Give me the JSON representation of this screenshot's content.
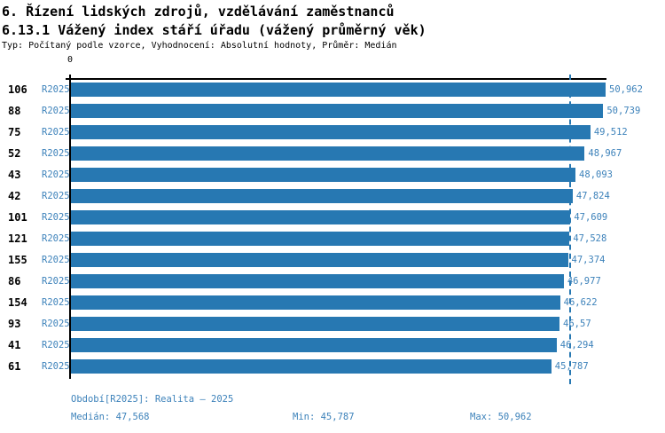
{
  "header": {
    "title": "6. Řízení lidských zdrojů, vzdělávání zaměstnanců",
    "subtitle": "6.13.1 Vážený index stáří úřadu (vážený průměrný věk)",
    "meta": "Typ: Počítaný podle vzorce, Vyhodnocení: Absolutní hodnoty, Průměr: Medián"
  },
  "chart_data": {
    "type": "bar",
    "orientation": "horizontal",
    "title": "6.13.1 Vážený index stáří úřadu (vážený průměrný věk)",
    "xlabel": "",
    "ylabel": "",
    "axis": {
      "origin_tick_label": "0",
      "xmin": 0,
      "xmax": 50.962,
      "grid": false
    },
    "rows": [
      {
        "id": "106",
        "period": "R2025",
        "value": 50.962,
        "value_label": "50,962"
      },
      {
        "id": "88",
        "period": "R2025",
        "value": 50.739,
        "value_label": "50,739"
      },
      {
        "id": "75",
        "period": "R2025",
        "value": 49.512,
        "value_label": "49,512"
      },
      {
        "id": "52",
        "period": "R2025",
        "value": 48.967,
        "value_label": "48,967"
      },
      {
        "id": "43",
        "period": "R2025",
        "value": 48.093,
        "value_label": "48,093"
      },
      {
        "id": "42",
        "period": "R2025",
        "value": 47.824,
        "value_label": "47,824"
      },
      {
        "id": "101",
        "period": "R2025",
        "value": 47.609,
        "value_label": "47,609"
      },
      {
        "id": "121",
        "period": "R2025",
        "value": 47.528,
        "value_label": "47,528"
      },
      {
        "id": "155",
        "period": "R2025",
        "value": 47.374,
        "value_label": "47,374"
      },
      {
        "id": "86",
        "period": "R2025",
        "value": 46.977,
        "value_label": "46,977"
      },
      {
        "id": "154",
        "period": "R2025",
        "value": 46.622,
        "value_label": "46,622"
      },
      {
        "id": "93",
        "period": "R2025",
        "value": 46.57,
        "value_label": "46,57"
      },
      {
        "id": "41",
        "period": "R2025",
        "value": 46.294,
        "value_label": "46,294"
      },
      {
        "id": "61",
        "period": "R2025",
        "value": 45.787,
        "value_label": "45,787"
      }
    ],
    "median_line": {
      "value": 47.568,
      "style": "dashed"
    },
    "colors": {
      "bar": "#2778b2",
      "blue_text": "#3d82ba",
      "axis": "#000000"
    }
  },
  "footer": {
    "period_info": "Období[R2025]: Realita – 2025",
    "median": "Medián: 47,568",
    "min": "Min: 45,787",
    "max": "Max: 50,962"
  }
}
